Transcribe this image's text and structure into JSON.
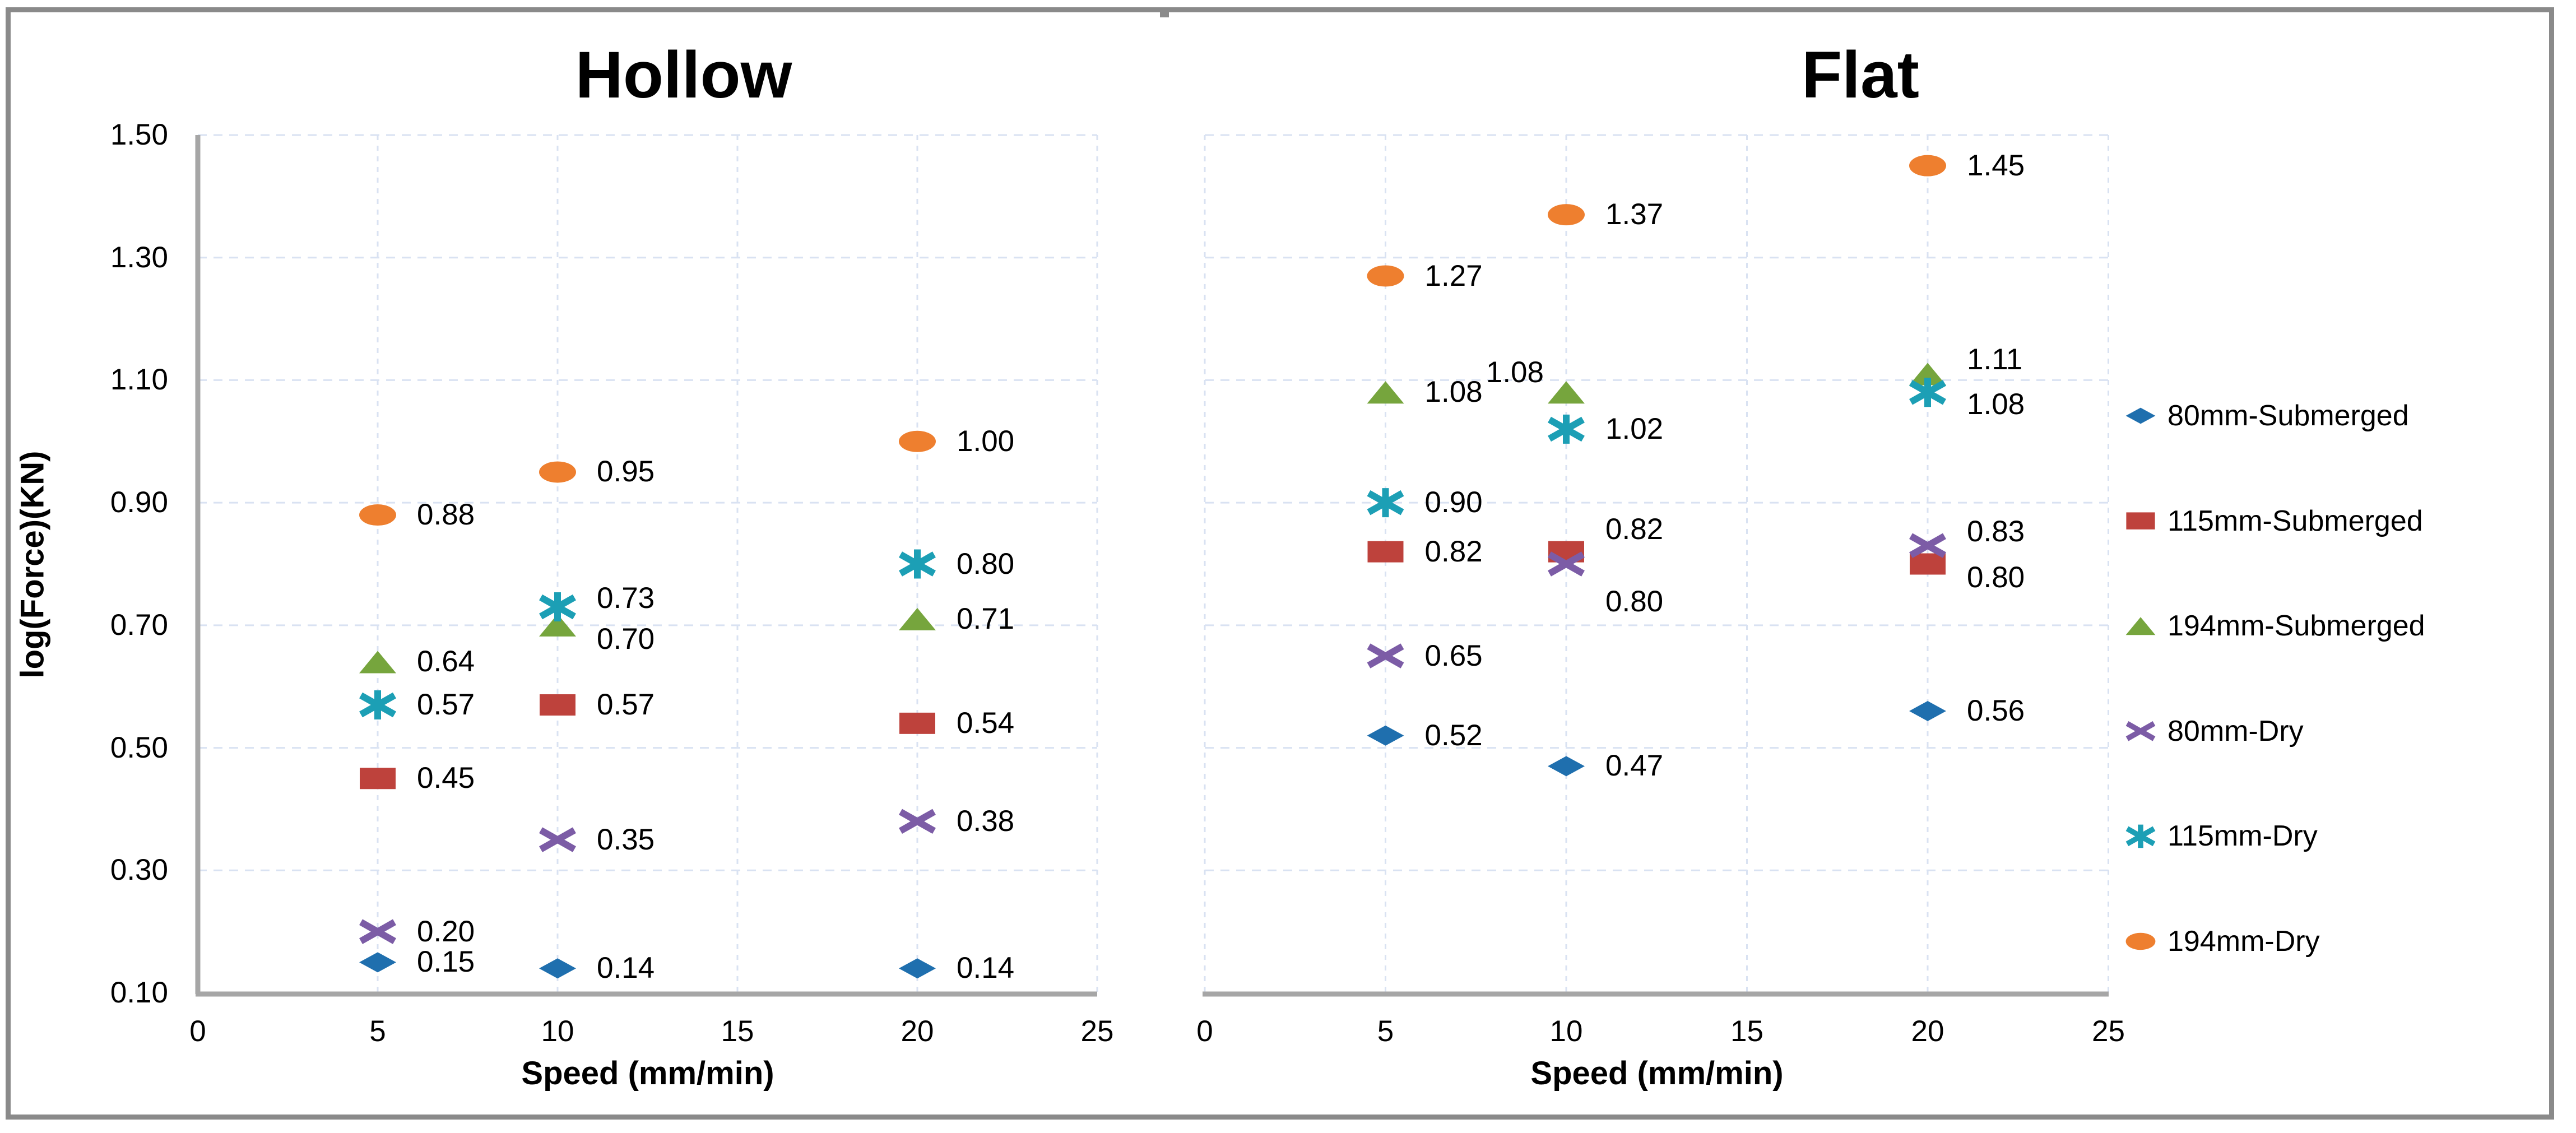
{
  "frame": {
    "border_color": "#8A8A8A"
  },
  "axes": {
    "x_title": "Speed (mm/min)",
    "y_title": "log(Force)(KN)",
    "y_ticks": [
      "1.50",
      "1.30",
      "1.10",
      "0.90",
      "0.70",
      "0.50",
      "0.30",
      "0.10"
    ],
    "x_ticks": [
      "0",
      "5",
      "10",
      "15",
      "20",
      "25"
    ]
  },
  "palette": {
    "grid": "#D9E2F2",
    "axis_line": "#A6A6A6",
    "blue": "#1F6FAE",
    "red": "#BE423C",
    "green": "#76A53D",
    "purple": "#7C5CA6",
    "teal": "#1C9FB5",
    "orange": "#EE7F2F"
  },
  "legend": {
    "items": [
      {
        "label": "80mm-Submerged",
        "marker": "diamond",
        "color": "#1F6FAE"
      },
      {
        "label": "115mm-Submerged",
        "marker": "square",
        "color": "#BE423C"
      },
      {
        "label": "194mm-Submerged",
        "marker": "triangle",
        "color": "#76A53D"
      },
      {
        "label": "80mm-Dry",
        "marker": "x",
        "color": "#7C5CA6"
      },
      {
        "label": "115mm-Dry",
        "marker": "star",
        "color": "#1C9FB5"
      },
      {
        "label": "194mm-Dry",
        "marker": "circle",
        "color": "#EE7F2F"
      }
    ]
  },
  "chart_data": [
    {
      "type": "scatter",
      "title": "Hollow",
      "xlabel": "Speed (mm/min)",
      "ylabel": "log(Force)(KN)",
      "xlim": [
        0,
        25
      ],
      "ylim": [
        0.1,
        1.5
      ],
      "x_tick_step": 5,
      "y_tick_step": 0.2,
      "grid": "dashed",
      "series": [
        {
          "name": "80mm-Submerged",
          "marker": "diamond",
          "color": "#1F6FAE",
          "points": [
            {
              "x": 5,
              "y": 0.15,
              "label": "0.15"
            },
            {
              "x": 10,
              "y": 0.14,
              "label": "0.14"
            },
            {
              "x": 20,
              "y": 0.14,
              "label": "0.14"
            }
          ]
        },
        {
          "name": "115mm-Submerged",
          "marker": "square",
          "color": "#BE423C",
          "points": [
            {
              "x": 5,
              "y": 0.45,
              "label": "0.45"
            },
            {
              "x": 10,
              "y": 0.57,
              "label": "0.57"
            },
            {
              "x": 20,
              "y": 0.54,
              "label": "0.54"
            }
          ]
        },
        {
          "name": "194mm-Submerged",
          "marker": "triangle",
          "color": "#76A53D",
          "points": [
            {
              "x": 5,
              "y": 0.64,
              "label": "0.64"
            },
            {
              "x": 10,
              "y": 0.7,
              "label": "0.70",
              "dy": 25
            },
            {
              "x": 20,
              "y": 0.71,
              "label": "0.71"
            }
          ]
        },
        {
          "name": "80mm-Dry",
          "marker": "x",
          "color": "#7C5CA6",
          "points": [
            {
              "x": 5,
              "y": 0.2,
              "label": "0.20"
            },
            {
              "x": 10,
              "y": 0.35,
              "label": "0.35"
            },
            {
              "x": 20,
              "y": 0.38,
              "label": "0.38"
            }
          ]
        },
        {
          "name": "115mm-Dry",
          "marker": "star",
          "color": "#1C9FB5",
          "points": [
            {
              "x": 5,
              "y": 0.57,
              "label": "0.57"
            },
            {
              "x": 10,
              "y": 0.73,
              "label": "0.73",
              "dy": -15
            },
            {
              "x": 20,
              "y": 0.8,
              "label": "0.80"
            }
          ]
        },
        {
          "name": "194mm-Dry",
          "marker": "circle",
          "color": "#EE7F2F",
          "points": [
            {
              "x": 5,
              "y": 0.88,
              "label": "0.88"
            },
            {
              "x": 10,
              "y": 0.95,
              "label": "0.95"
            },
            {
              "x": 20,
              "y": 1.0,
              "label": "1.00"
            }
          ]
        }
      ]
    },
    {
      "type": "scatter",
      "title": "Flat",
      "xlabel": "Speed (mm/min)",
      "ylabel": "log(Force)(KN)",
      "xlim": [
        0,
        25
      ],
      "ylim": [
        0.1,
        1.5
      ],
      "x_tick_step": 5,
      "y_tick_step": 0.2,
      "grid": "dashed",
      "series": [
        {
          "name": "80mm-Submerged",
          "marker": "diamond",
          "color": "#1F6FAE",
          "points": [
            {
              "x": 5,
              "y": 0.52,
              "label": "0.52"
            },
            {
              "x": 10,
              "y": 0.47,
              "label": "0.47"
            },
            {
              "x": 20,
              "y": 0.56,
              "label": "0.56"
            }
          ]
        },
        {
          "name": "115mm-Submerged",
          "marker": "square",
          "color": "#BE423C",
          "points": [
            {
              "x": 5,
              "y": 0.82,
              "label": "0.82"
            },
            {
              "x": 10,
              "y": 0.82,
              "label": "0.82",
              "dy": -40
            },
            {
              "x": 20,
              "y": 0.8,
              "label": "0.80",
              "dy": 24
            }
          ]
        },
        {
          "name": "194mm-Submerged",
          "marker": "triangle",
          "color": "#76A53D",
          "points": [
            {
              "x": 5,
              "y": 1.08,
              "label": "1.08"
            },
            {
              "x": 10,
              "y": 1.08,
              "label": "1.08",
              "side": "l",
              "dy": -35
            },
            {
              "x": 20,
              "y": 1.11,
              "label": "1.11",
              "dy": -25
            }
          ]
        },
        {
          "name": "80mm-Dry",
          "marker": "x",
          "color": "#7C5CA6",
          "points": [
            {
              "x": 5,
              "y": 0.65,
              "label": "0.65"
            },
            {
              "x": 10,
              "y": 0.8,
              "label": "0.80",
              "dy": 67
            },
            {
              "x": 20,
              "y": 0.83,
              "label": "0.83",
              "dy": -25
            }
          ]
        },
        {
          "name": "115mm-Dry",
          "marker": "star",
          "color": "#1C9FB5",
          "points": [
            {
              "x": 5,
              "y": 0.9,
              "label": "0.90"
            },
            {
              "x": 10,
              "y": 1.02,
              "label": "1.02"
            },
            {
              "x": 20,
              "y": 1.08,
              "label": "1.08",
              "dy": 22
            }
          ]
        },
        {
          "name": "194mm-Dry",
          "marker": "circle",
          "color": "#EE7F2F",
          "points": [
            {
              "x": 5,
              "y": 1.27,
              "label": "1.27"
            },
            {
              "x": 10,
              "y": 1.37,
              "label": "1.37"
            },
            {
              "x": 20,
              "y": 1.45,
              "label": "1.45"
            }
          ]
        }
      ]
    }
  ]
}
